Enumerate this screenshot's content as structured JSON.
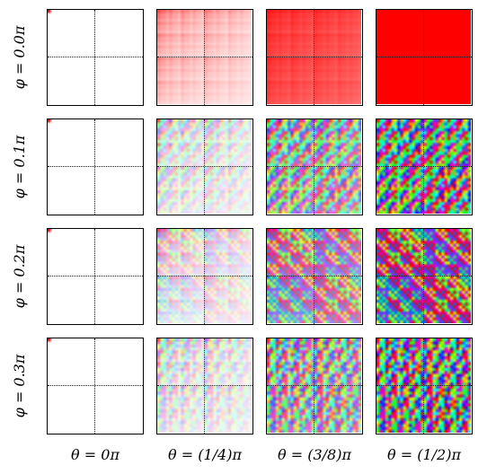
{
  "chart_data": {
    "type": "heatmap",
    "title": "",
    "rows": {
      "parameter": "φ",
      "labels": [
        "φ = 0.0π",
        "φ = 0.1π",
        "φ = 0.2π",
        "φ = 0.3π"
      ],
      "values_pi": [
        0.0,
        0.1,
        0.2,
        0.3
      ]
    },
    "columns": {
      "parameter": "θ",
      "labels": [
        "θ = 0π",
        "θ = (1/4)π",
        "θ = (3/8)π",
        "θ = (1/2)π"
      ],
      "values_pi": [
        0,
        0.25,
        0.375,
        0.5
      ]
    },
    "grid_size": 32,
    "dotted_midlines": true,
    "panel_color_mode": [
      [
        "near-white",
        "pale red",
        "red",
        "solid red"
      ],
      [
        "near-white",
        "pale yellow",
        "pale yellow-green",
        "yellow-green"
      ],
      [
        "near-white",
        "pale green",
        "pale cyan-green",
        "green-blue-cyan"
      ],
      [
        "near-white",
        "pale mixed",
        "pale blue-magenta",
        "multicolor"
      ]
    ],
    "colors": {
      "axes": "#000000",
      "background": "#ffffff",
      "solid_red": "#ff0000"
    }
  }
}
